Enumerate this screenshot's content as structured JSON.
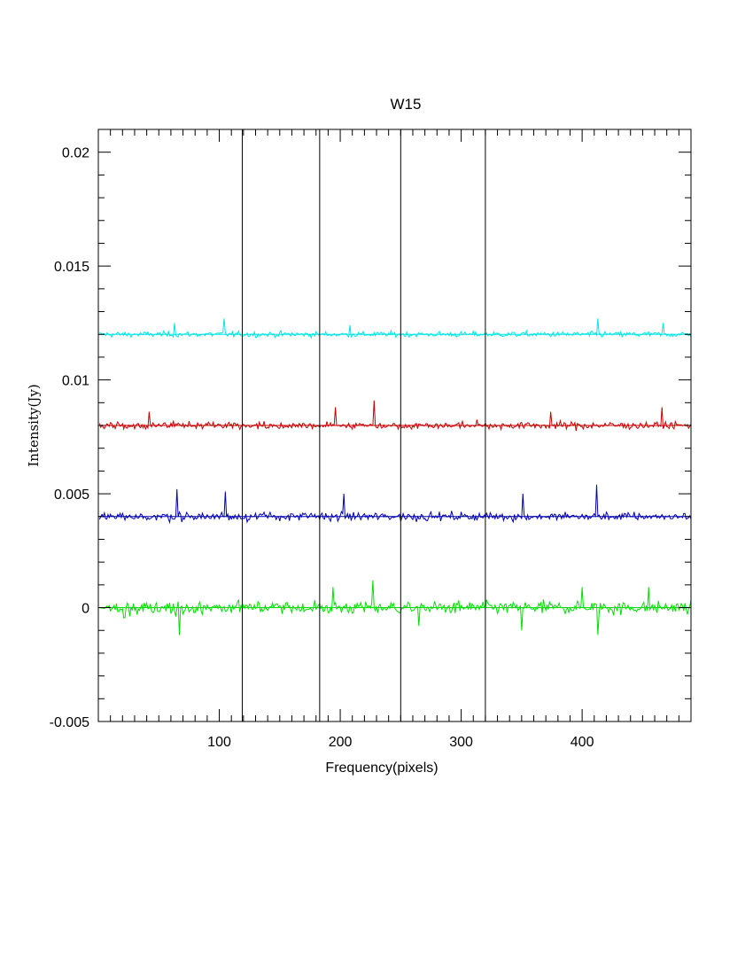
{
  "chart_data": {
    "type": "line",
    "title": "W15",
    "xlabel": "Frequency(pixels)",
    "ylabel": "Intensity(Jy)",
    "xlim": [
      0,
      490
    ],
    "ylim": [
      -0.005,
      0.021
    ],
    "x_ticks": [
      100,
      200,
      300,
      400
    ],
    "x_tick_labels": [
      "100",
      "200",
      "300",
      "400"
    ],
    "y_ticks": [
      -0.005,
      0,
      0.005,
      0.01,
      0.015,
      0.02
    ],
    "y_tick_labels": [
      "-0.005",
      "0",
      "0.005",
      "0.01",
      "0.015",
      "0.02"
    ],
    "vertical_lines_x": [
      119,
      183,
      250,
      320
    ],
    "n_points": 490,
    "grid": false,
    "series": [
      {
        "color": "#00e5e5",
        "baseline": 0.012,
        "noise_sigma": 0.00012,
        "peaks": [
          [
            63,
            0.0125
          ],
          [
            104,
            0.0127
          ],
          [
            208,
            0.0124
          ],
          [
            413,
            0.0127
          ],
          [
            467,
            0.0125
          ]
        ]
      },
      {
        "color": "#c80000",
        "baseline": 0.008,
        "noise_sigma": 0.00016,
        "peaks": [
          [
            42,
            0.0086
          ],
          [
            196,
            0.0088
          ],
          [
            228,
            0.0091
          ],
          [
            374,
            0.0086
          ],
          [
            466,
            0.0088
          ]
        ]
      },
      {
        "color": "#0000b4",
        "baseline": 0.004,
        "noise_sigma": 0.00018,
        "peaks": [
          [
            65,
            0.0052
          ],
          [
            105,
            0.0051
          ],
          [
            203,
            0.005
          ],
          [
            351,
            0.005
          ],
          [
            412,
            0.0054
          ]
        ]
      },
      {
        "color": "#00e000",
        "baseline": 0.0,
        "noise_sigma": 0.00028,
        "peaks": [
          [
            194,
            0.0009
          ],
          [
            227,
            0.0012
          ],
          [
            400,
            0.0009
          ],
          [
            455,
            0.0009
          ],
          [
            67,
            -0.0012
          ],
          [
            265,
            -0.0008
          ],
          [
            350,
            -0.001
          ],
          [
            413,
            -0.0012
          ]
        ]
      }
    ]
  }
}
